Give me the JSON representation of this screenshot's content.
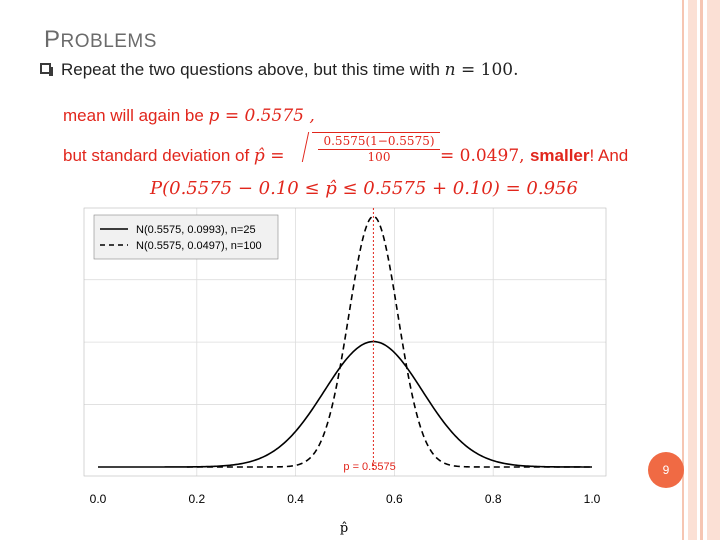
{
  "slide": {
    "title_cap": "P",
    "title_rest": "ROBLEMS",
    "bullet_text_1": "Repeat the two questions above, but this time with ",
    "bullet_math_n": "n",
    "bullet_math_eq": " = 100.",
    "mean_text": "mean will again be ",
    "mean_math": "p = 0.5575 ,",
    "sd_text": "but standard deviation of ",
    "sd_math_var": "p̂ =",
    "sd_numerator": "0.5575(1−0.5575)",
    "sd_denominator": "100",
    "sd_result": " = 0.0497, ",
    "sd_smaller": "smaller",
    "sd_and": "! And",
    "prob_math": "P(0.5575 − 0.10 ≤ p̂ ≤ 0.5575 + 0.10) = 0.956",
    "page_number": "9"
  },
  "colors": {
    "accent_red": "#e1261c",
    "badge": "#f06a44",
    "stripe": "#f6c6b3"
  },
  "chart_data": {
    "type": "line",
    "xlabel": "p̂",
    "ylabel": "",
    "xlim": [
      0.0,
      1.0
    ],
    "x_ticks": [
      "0.0",
      "0.2",
      "0.4",
      "0.6",
      "0.8",
      "1.0"
    ],
    "grid": true,
    "legend_position": "top-left",
    "series": [
      {
        "name": "N(0.5575, 0.0993), n=25",
        "mean": 0.5575,
        "sd": 0.0993,
        "x_range": [
          0.0,
          1.0
        ],
        "line_style": "solid"
      },
      {
        "name": "N(0.5575, 0.0497), n=100",
        "mean": 0.5575,
        "sd": 0.0497,
        "x_range": [
          0.18,
          1.0
        ],
        "line_style": "dashed"
      }
    ],
    "vline": {
      "x": 0.5575,
      "label": "p = 0.5575",
      "color": "#e1261c"
    }
  }
}
